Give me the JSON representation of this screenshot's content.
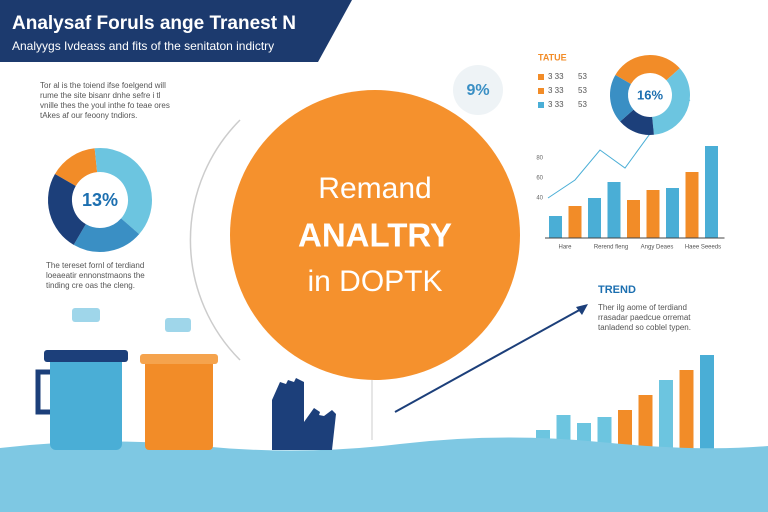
{
  "header": {
    "title": "Analysaf Foruls ange Tranest N",
    "subtitle": "Analyygs Ivdeass and fits of the senitaton indictry"
  },
  "intro": [
    "Tor al is the toiend ifse foelgend will",
    "rume the site bisanr dnhe sefre i tl",
    "vnille thes the youl inthe fo teae ores",
    "tAkes af our feoony tndiors."
  ],
  "donut_left": {
    "label": "13%",
    "values": [
      15,
      38,
      22,
      25
    ],
    "colors": [
      "#f28c28",
      "#6cc5e0",
      "#3a8fc4",
      "#1c3f7a"
    ]
  },
  "caption": [
    "The tereset fornl of terdiand",
    "loeaeatir ennonstmaons the",
    "tinding cre oas the cleng."
  ],
  "center": {
    "line1": "Remand",
    "line2": "ANALTRY",
    "line3": "in DOPTK"
  },
  "badge": "9%",
  "legend": {
    "title": "TATUE",
    "rows": [
      {
        "name": "3 33",
        "value": "53",
        "color": "#f28c28"
      },
      {
        "name": "3 33",
        "value": "53",
        "color": "#f28c28"
      },
      {
        "name": "3 33",
        "value": "53",
        "color": "#4aaed6"
      }
    ]
  },
  "donut_right": {
    "label": "16%",
    "values": [
      30,
      35,
      15,
      20
    ],
    "colors": [
      "#f28c28",
      "#6cc5e0",
      "#1c3f7a",
      "#3a8fc4"
    ]
  },
  "bars_top": {
    "ylim": [
      0,
      100
    ],
    "yticks": [
      80,
      60,
      40
    ],
    "values": [
      22,
      32,
      40,
      56,
      38,
      48,
      50,
      66,
      92
    ],
    "colors": [
      "#4aaed6",
      "#f28c28",
      "#4aaed6",
      "#4aaed6",
      "#f28c28",
      "#f28c28",
      "#4aaed6",
      "#f28c28",
      "#4aaed6"
    ],
    "categories": [
      "Hare",
      "Rerend fleng",
      "Angy Deaes",
      "Haee Seeeds"
    ]
  },
  "trend": {
    "title": "TREND",
    "text": [
      "Ther ilg aome of terdiand",
      "rrasadar paedcue orremat",
      "tanladend so coblel typen."
    ]
  },
  "bars_bottom": {
    "ylim": [
      0,
      100
    ],
    "values": [
      20,
      35,
      27,
      33,
      40,
      55,
      70,
      80,
      95
    ],
    "colors": [
      "#6cc5e0",
      "#6cc5e0",
      "#6cc5e0",
      "#6cc5e0",
      "#f28c28",
      "#f28c28",
      "#6cc5e0",
      "#f28c28",
      "#4aaed6"
    ]
  }
}
